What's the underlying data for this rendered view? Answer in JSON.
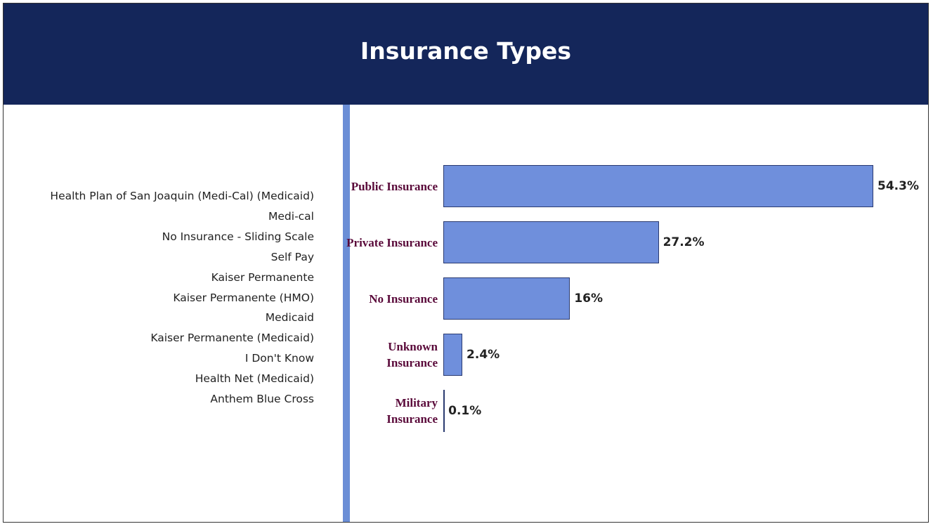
{
  "header": {
    "title": "Insurance Types"
  },
  "insurance_list": [
    "Health Plan of San Joaquin (Medi-Cal) (Medicaid)",
    "Medi-cal",
    "No Insurance - Sliding Scale",
    "Self Pay",
    "Kaiser Permanente",
    "Kaiser Permanente (HMO)",
    "Medicaid",
    "Kaiser Permanente (Medicaid)",
    "I Don't Know",
    "Health Net (Medicaid)",
    "Anthem Blue Cross"
  ],
  "chart_data": {
    "type": "bar",
    "orientation": "horizontal",
    "categories": [
      "Public Insurance",
      "Private Insurance",
      "No Insurance",
      "Unknown Insurance",
      "Military Insurance"
    ],
    "values": [
      54.3,
      27.2,
      16,
      2.4,
      0.1
    ],
    "value_labels": [
      "54.3%",
      "27.2%",
      "16%",
      "2.4%",
      "0.1%"
    ],
    "color": "#6f8fdc"
  }
}
